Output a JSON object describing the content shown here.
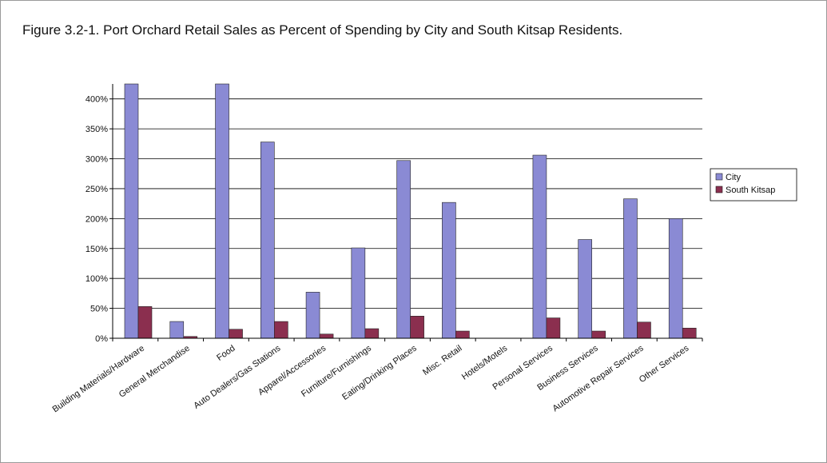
{
  "figure_title": "Figure 3.2-1.  Port Orchard Retail Sales as Percent of Spending by City and South Kitsap Residents.",
  "colors": {
    "city": "#8a8ad4",
    "south_kitsap": "#8b2f4f",
    "gridline": "#000000",
    "bar_outline": "#222222"
  },
  "chart_data": {
    "type": "bar",
    "title": "",
    "xlabel": "",
    "ylabel": "",
    "ylim": [
      0,
      425
    ],
    "yticks": [
      0,
      50,
      100,
      150,
      200,
      250,
      300,
      350,
      400
    ],
    "ytick_labels": [
      "0%",
      "50%",
      "100%",
      "150%",
      "200%",
      "250%",
      "300%",
      "350%",
      "400%"
    ],
    "grid": true,
    "legend_position": "right",
    "categories": [
      "Building Materials/Hardware",
      "General Merchandise",
      "Food",
      "Auto Dealers/Gas Stations",
      "Apparel/Accessories",
      "Furniture/Furnishings",
      "Eating/Drinking Places",
      "Misc. Retail",
      "Hotels/Motels",
      "Personal Services",
      "Business Services",
      "Automotive Repair Services",
      "Other Services"
    ],
    "series": [
      {
        "name": "City",
        "values": [
          425,
          28,
          425,
          328,
          77,
          151,
          297,
          227,
          0,
          306,
          165,
          233,
          200
        ]
      },
      {
        "name": "South Kitsap",
        "values": [
          53,
          3,
          15,
          28,
          7,
          16,
          37,
          12,
          0,
          34,
          12,
          27,
          17
        ]
      }
    ]
  }
}
